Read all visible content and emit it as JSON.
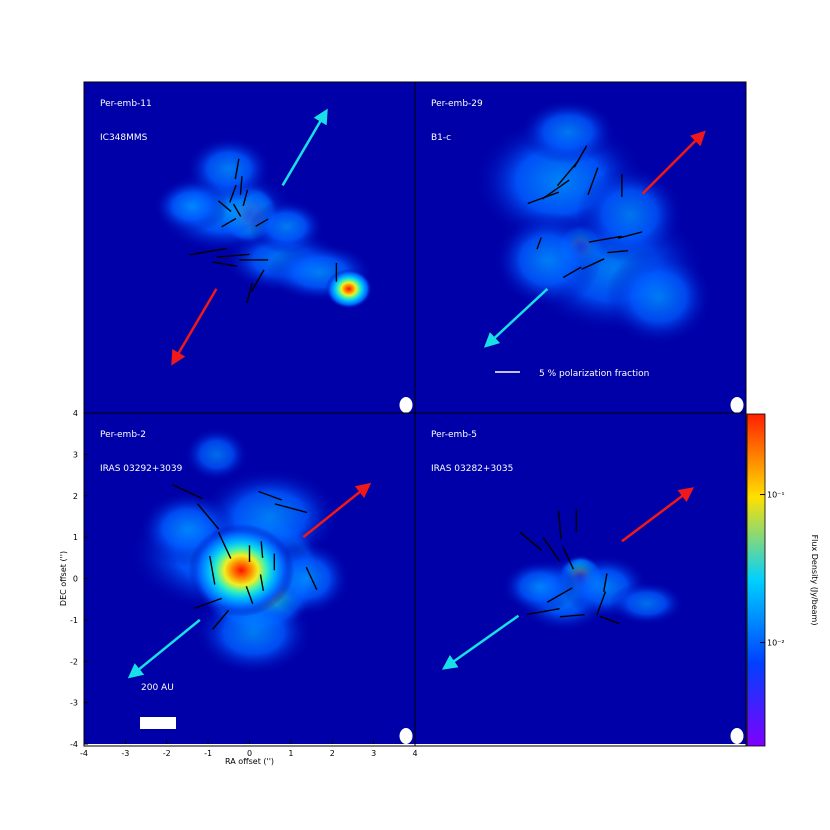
{
  "chart_data": {
    "type": "heatmap",
    "x_axis": {
      "label": "RA offset ('')",
      "range": [
        -4,
        4
      ],
      "ticks": [
        -4,
        -3,
        -2,
        -1,
        0,
        1,
        2,
        3,
        4
      ]
    },
    "y_axis": {
      "label": "DEC offset ('')",
      "range": [
        -4,
        4
      ],
      "ticks": [
        -4,
        -3,
        -2,
        -1,
        0,
        1,
        2,
        3,
        4
      ]
    },
    "colorbar": {
      "label": "Flux Density (Jy/beam)",
      "scale": "log",
      "range": [
        0.002,
        0.35
      ],
      "tick_labels": [
        "10⁻¹",
        "10⁻²"
      ],
      "tick_values": [
        0.1,
        0.01
      ],
      "colormap": [
        "#7f00ff",
        "#0040ff",
        "#00d0ff",
        "#ffe000",
        "#ff2000"
      ]
    },
    "background_color": "#0000a8",
    "outflow_colors": {
      "blue": "#18e0e8",
      "red": "#f01818"
    },
    "panels": [
      {
        "id": "Per-emb-11",
        "name": "Per-emb-11",
        "alias": "IC348MMS",
        "peak": [
          0,
          0.8
        ],
        "blobs": [
          [
            0,
            0.8,
            0.45,
            0.45,
            1.0
          ],
          [
            -0.6,
            0.9,
            1.3,
            0.8,
            0.35
          ],
          [
            0.8,
            -0.3,
            1.1,
            0.6,
            0.3
          ],
          [
            1.7,
            -0.6,
            1.0,
            0.55,
            0.3
          ],
          [
            2.4,
            -1.0,
            0.35,
            0.3,
            0.55
          ],
          [
            -0.5,
            1.9,
            0.8,
            0.6,
            0.3
          ],
          [
            0.9,
            0.5,
            0.7,
            0.5,
            0.3
          ],
          [
            -1.4,
            1.0,
            0.7,
            0.5,
            0.3
          ]
        ],
        "outflow_blue": [
          [
            0.8,
            1.5
          ],
          [
            1.8,
            3.2
          ]
        ],
        "outflow_red": [
          [
            -0.8,
            -1.0
          ],
          [
            -1.8,
            -2.7
          ]
        ],
        "vectors": [
          [
            -0.3,
            1.9,
            80,
            0.5
          ],
          [
            -0.2,
            1.5,
            85,
            0.45
          ],
          [
            -0.1,
            1.2,
            75,
            0.4
          ],
          [
            -0.4,
            1.3,
            70,
            0.45
          ],
          [
            -0.6,
            1.0,
            140,
            0.4
          ],
          [
            -0.3,
            0.9,
            120,
            0.35
          ],
          [
            -0.5,
            0.6,
            30,
            0.4
          ],
          [
            0.3,
            0.6,
            30,
            0.35
          ],
          [
            -1.0,
            -0.1,
            10,
            0.9
          ],
          [
            -0.4,
            -0.2,
            5,
            0.8
          ],
          [
            0.1,
            -0.3,
            0,
            0.7
          ],
          [
            -0.6,
            -0.4,
            170,
            0.6
          ],
          [
            0.2,
            -0.8,
            60,
            0.6
          ],
          [
            0.0,
            -1.1,
            75,
            0.5
          ],
          [
            2.1,
            -0.6,
            90,
            0.45
          ]
        ],
        "show_polarization_scale": false
      },
      {
        "id": "Per-emb-29",
        "name": "Per-emb-29",
        "alias": "B1-c",
        "peak": [
          0,
          0
        ],
        "blobs": [
          [
            0,
            0,
            0.35,
            0.35,
            1.0
          ],
          [
            -0.5,
            1.6,
            1.6,
            1.2,
            0.35
          ],
          [
            0.8,
            -0.5,
            1.7,
            1.2,
            0.3
          ],
          [
            1.2,
            0.8,
            1.0,
            0.9,
            0.25
          ],
          [
            -0.8,
            -0.3,
            1.0,
            0.9,
            0.3
          ],
          [
            1.9,
            -1.2,
            1.0,
            0.9,
            0.25
          ],
          [
            -0.3,
            2.8,
            0.9,
            0.6,
            0.25
          ]
        ],
        "outflow_blue": [
          [
            -0.8,
            -1.0
          ],
          [
            -2.2,
            -2.3
          ]
        ],
        "outflow_red": [
          [
            1.5,
            1.3
          ],
          [
            2.9,
            2.7
          ]
        ],
        "vectors": [
          [
            0.0,
            2.2,
            60,
            0.6
          ],
          [
            -0.3,
            1.8,
            50,
            0.8
          ],
          [
            -0.6,
            1.4,
            35,
            0.8
          ],
          [
            -0.9,
            1.2,
            20,
            0.8
          ],
          [
            0.3,
            1.6,
            70,
            0.7
          ],
          [
            1.0,
            1.5,
            90,
            0.55
          ],
          [
            0.6,
            0.2,
            10,
            0.8
          ],
          [
            1.2,
            0.3,
            15,
            0.6
          ],
          [
            0.9,
            -0.1,
            5,
            0.5
          ],
          [
            0.3,
            -0.4,
            25,
            0.6
          ],
          [
            -0.2,
            -0.6,
            30,
            0.5
          ],
          [
            -1.0,
            0.1,
            70,
            0.3
          ]
        ],
        "show_polarization_scale": true
      },
      {
        "id": "Per-emb-2",
        "name": "Per-emb-2",
        "alias": "IRAS 03292+3039",
        "peak": [
          0.3,
          0.2
        ],
        "blobs": [
          [
            0.4,
            0.4,
            0.8,
            0.7,
            1.0
          ],
          [
            0.2,
            -0.1,
            0.9,
            0.8,
            0.7
          ],
          [
            -0.6,
            0.6,
            1.8,
            1.1,
            0.35
          ],
          [
            0.5,
            1.5,
            1.3,
            0.9,
            0.3
          ],
          [
            0.1,
            -1.3,
            1.1,
            0.8,
            0.3
          ],
          [
            -1.5,
            1.2,
            0.9,
            0.7,
            0.3
          ],
          [
            1.4,
            0.0,
            0.8,
            0.7,
            0.3
          ],
          [
            -0.8,
            3.0,
            0.6,
            0.5,
            0.2
          ],
          [
            -0.2,
            0.2,
            0.8,
            0.7,
            0.55
          ]
        ],
        "outflow_blue": [
          [
            -1.2,
            -1.0
          ],
          [
            -2.8,
            -2.3
          ]
        ],
        "outflow_red": [
          [
            1.3,
            1.0
          ],
          [
            2.8,
            2.2
          ]
        ],
        "vectors": [
          [
            -1.5,
            2.1,
            155,
            0.8
          ],
          [
            -1.0,
            1.5,
            130,
            0.8
          ],
          [
            -0.6,
            0.8,
            115,
            0.7
          ],
          [
            -0.9,
            0.2,
            100,
            0.7
          ],
          [
            -1.0,
            -0.6,
            20,
            0.7
          ],
          [
            -0.7,
            -1.0,
            50,
            0.6
          ],
          [
            0.0,
            0.6,
            90,
            0.4
          ],
          [
            0.3,
            0.7,
            95,
            0.4
          ],
          [
            0.6,
            0.4,
            90,
            0.4
          ],
          [
            0.3,
            -0.1,
            100,
            0.4
          ],
          [
            0.0,
            -0.4,
            110,
            0.45
          ],
          [
            1.0,
            1.7,
            165,
            0.8
          ],
          [
            0.5,
            2.0,
            160,
            0.6
          ],
          [
            1.5,
            0.0,
            115,
            0.6
          ]
        ],
        "show_polarization_scale": false
      },
      {
        "id": "Per-emb-5",
        "name": "Per-emb-5",
        "alias": "IRAS 03282+3035",
        "peak": [
          0,
          0
        ],
        "blobs": [
          [
            0,
            0,
            0.35,
            0.35,
            1.0
          ],
          [
            -0.4,
            -0.4,
            0.9,
            0.7,
            0.35
          ],
          [
            0.6,
            -0.2,
            0.8,
            0.6,
            0.3
          ],
          [
            -1.0,
            -0.2,
            0.7,
            0.5,
            0.25
          ],
          [
            1.6,
            -0.6,
            0.7,
            0.4,
            0.22
          ]
        ],
        "outflow_blue": [
          [
            -1.5,
            -0.9
          ],
          [
            -3.2,
            -2.1
          ]
        ],
        "outflow_red": [
          [
            1.0,
            0.9
          ],
          [
            2.6,
            2.1
          ]
        ],
        "vectors": [
          [
            -1.2,
            0.9,
            140,
            0.7
          ],
          [
            -0.7,
            0.7,
            125,
            0.7
          ],
          [
            -0.3,
            0.5,
            115,
            0.6
          ],
          [
            -0.5,
            -0.4,
            30,
            0.7
          ],
          [
            -0.9,
            -0.8,
            10,
            0.8
          ],
          [
            -0.2,
            -0.9,
            5,
            0.6
          ],
          [
            0.5,
            -0.6,
            70,
            0.6
          ],
          [
            0.6,
            -0.1,
            80,
            0.45
          ],
          [
            -0.5,
            1.3,
            95,
            0.7
          ],
          [
            -0.1,
            1.4,
            90,
            0.55
          ],
          [
            0.7,
            -1.0,
            160,
            0.5
          ]
        ],
        "show_polarization_scale": false
      }
    ],
    "annotations": {
      "polarization_scale": "5 % polarization fraction",
      "physical_scale": "200 AU"
    }
  }
}
